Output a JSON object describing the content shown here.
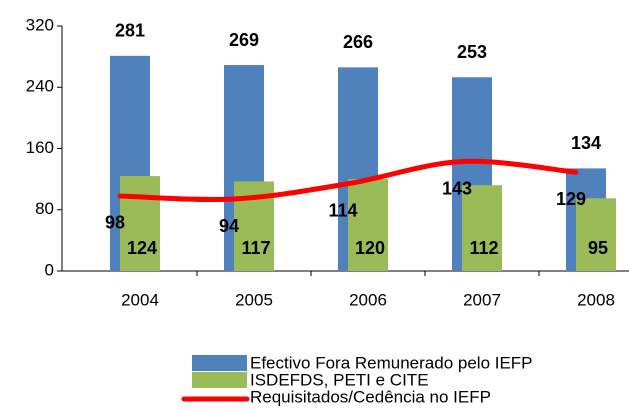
{
  "chart_data": {
    "type": "bar",
    "categories": [
      "2004",
      "2005",
      "2006",
      "2007",
      "2008"
    ],
    "series": [
      {
        "name": "Efectivo Fora Remunerado pelo IEFP",
        "color": "#4f81bd",
        "values": [
          281,
          269,
          266,
          253,
          134
        ]
      },
      {
        "name": "ISDEFDS, PETI e CITE",
        "color": "#9bbb59",
        "values": [
          124,
          117,
          120,
          112,
          95
        ]
      },
      {
        "name": "Requisitados/Cedência no IEFP",
        "color": "#ff0000",
        "type": "line",
        "values": [
          98,
          94,
          114,
          143,
          129
        ]
      }
    ],
    "ylim": [
      0,
      320
    ],
    "yticks": [
      0,
      80,
      160,
      240,
      320
    ],
    "grid": false,
    "legend": "bottom"
  }
}
